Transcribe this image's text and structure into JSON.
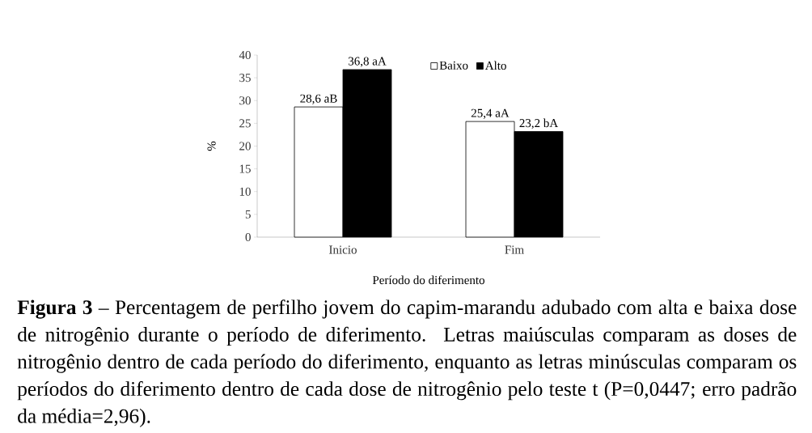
{
  "chart_data": {
    "type": "bar",
    "categories": [
      "Inicio",
      "Fim"
    ],
    "series": [
      {
        "name": "Baixo",
        "color": "#ffffff",
        "values": [
          28.6,
          25.4
        ],
        "value_labels": [
          "28,6 aB",
          "25,4 aA"
        ]
      },
      {
        "name": "Alto",
        "color": "#000000",
        "values": [
          36.8,
          23.2
        ],
        "value_labels": [
          "36,8 aA",
          "23,2 bA"
        ]
      }
    ],
    "ylim": [
      0,
      40
    ],
    "yticks": [
      0,
      5,
      10,
      15,
      20,
      25,
      30,
      35,
      40
    ],
    "xlabel": "Período do diferimento",
    "ylabel": "%",
    "legend": "top right",
    "annotations": [
      "**Figura 3** – Percentagem de perfilho jovem do capim-marandu adubado com alta e baixa dose de nitrogênio durante o período de diferimento. Letras maiúsculas comparam as doses de nitrogênio dentro de cada período do diferimento, enquanto as letras minúsculas comparam os períodos do diferimento dentro de cada dose de nitrogênio pelo teste t (P=0,0447; erro padrão da média=2,96)."
    ]
  }
}
